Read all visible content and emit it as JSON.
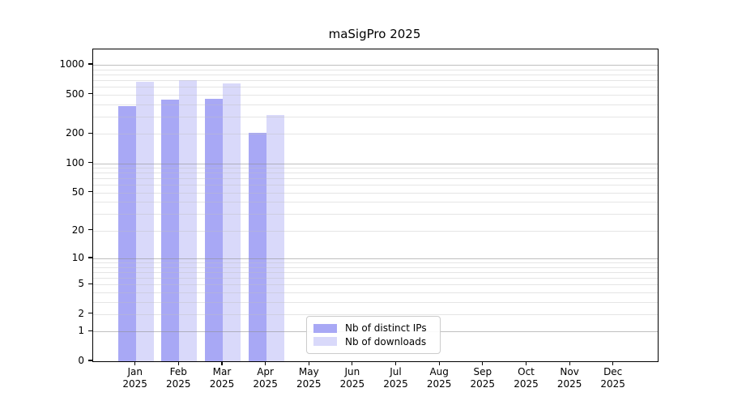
{
  "title": "maSigPro 2025",
  "chart_data": {
    "type": "bar",
    "title": "maSigPro 2025",
    "categories": [
      "Jan",
      "Feb",
      "Mar",
      "Apr",
      "May",
      "Jun",
      "Jul",
      "Aug",
      "Sep",
      "Oct",
      "Nov",
      "Dec"
    ],
    "category_year": "2025",
    "series": [
      {
        "name": "Nb of distinct IPs",
        "color": "#a8a8f5",
        "values": [
          380,
          445,
          455,
          205,
          null,
          null,
          null,
          null,
          null,
          null,
          null,
          null
        ]
      },
      {
        "name": "Nb of downloads",
        "color": "#d9d9fa",
        "values": [
          675,
          700,
          650,
          310,
          null,
          null,
          null,
          null,
          null,
          null,
          null,
          null
        ]
      }
    ],
    "xlabel": "",
    "ylabel": "",
    "yscale": "log10(value+1)",
    "ylim": [
      0,
      1000
    ],
    "yticks": [
      0,
      1,
      2,
      5,
      10,
      20,
      50,
      100,
      200,
      500,
      1000
    ],
    "grid_major_at": [
      1,
      10,
      100,
      1000
    ],
    "grid": "both, horizontal only, drawn over bars",
    "legend_position": "lower center",
    "plot_background": "#ffffff"
  },
  "colors": {
    "axis": "#000000",
    "grid_major": "#b0b0b0",
    "grid_minor": "#dedede",
    "background": "#ffffff"
  }
}
